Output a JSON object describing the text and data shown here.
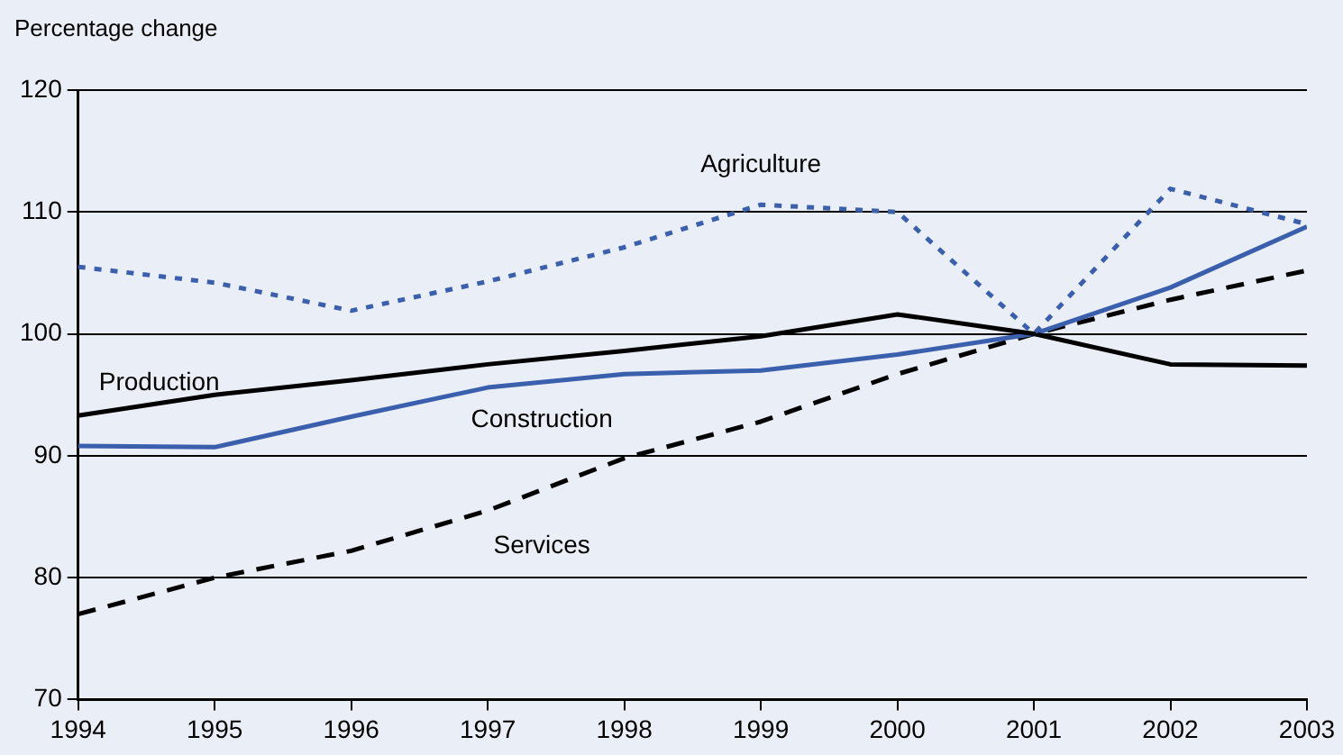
{
  "chart_data": {
    "type": "line",
    "ylabel": "Percentage change",
    "x": [
      1994,
      1995,
      1996,
      1997,
      1998,
      1999,
      2000,
      2001,
      2002,
      2003
    ],
    "series": [
      {
        "name": "Agriculture",
        "color": "#3a5fad",
        "line_style": "dotted",
        "values": [
          105.5,
          104.2,
          101.9,
          104.3,
          107.1,
          110.6,
          110,
          100,
          111.9,
          109
        ]
      },
      {
        "name": "Production",
        "color": "#000000",
        "line_style": "solid",
        "values": [
          93.3,
          95,
          96.2,
          97.5,
          98.6,
          99.8,
          101.6,
          100,
          97.5,
          97.4
        ]
      },
      {
        "name": "Construction",
        "color": "#3a5fad",
        "line_style": "solid",
        "values": [
          90.8,
          90.7,
          93.2,
          95.6,
          96.7,
          97,
          98.3,
          100,
          103.8,
          108.8
        ]
      },
      {
        "name": "Services",
        "color": "#000000",
        "line_style": "dashed",
        "values": [
          77,
          80,
          82.2,
          85.5,
          89.8,
          92.8,
          96.7,
          100,
          102.8,
          105.2
        ]
      }
    ],
    "xlim": [
      1994,
      2003
    ],
    "xticks": [
      1994,
      1995,
      1996,
      1997,
      1998,
      1999,
      2000,
      2001,
      2002,
      2003
    ],
    "ylim": [
      70,
      120
    ],
    "yticks": [
      70,
      80,
      90,
      100,
      110,
      120
    ],
    "grid": "y",
    "legend": false,
    "marker": "none"
  }
}
